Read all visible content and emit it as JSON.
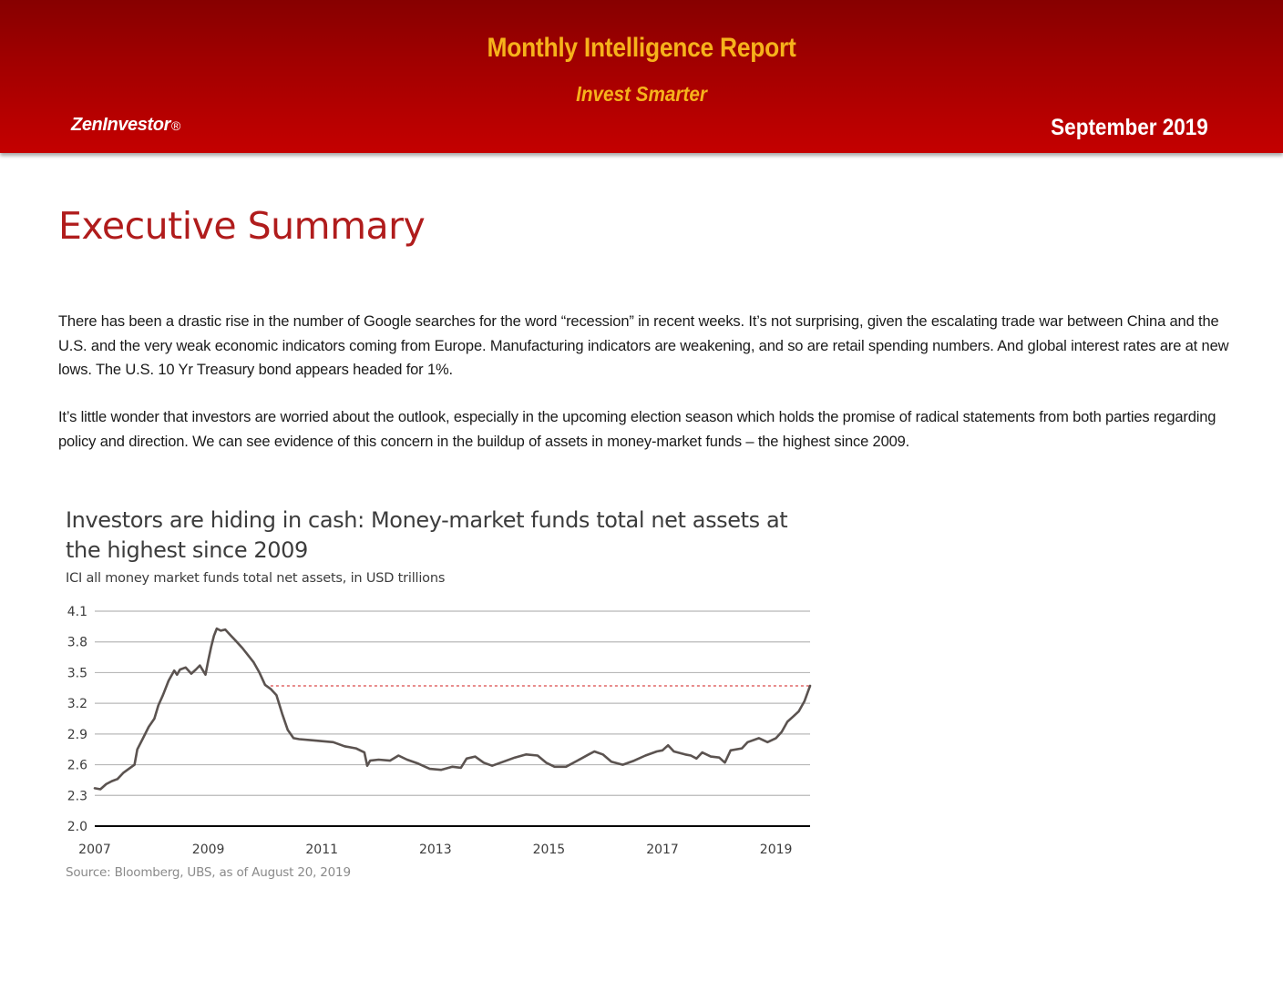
{
  "header": {
    "title": "Monthly Intelligence Report",
    "tagline": "Invest Smarter",
    "brand": "ZenInvestor",
    "brand_mark": "®",
    "date": "September 2019",
    "colors": {
      "band": "#b30000",
      "title_text": "#f6b21b",
      "brand_text": "#ffffff"
    }
  },
  "section": {
    "title": "Executive Summary",
    "title_color": "#b01c1c"
  },
  "body": {
    "paragraph_1": "There has been a drastic rise in the number of Google searches for the word “recession” in recent weeks. It’s not surprising, given the escalating trade war between China and the U.S. and the very weak economic indicators coming from Europe. Manufacturing indicators are weakening, and so are retail spending numbers. And global interest rates are at new lows. The U.S. 10 Yr Treasury bond appears headed for 1%.",
    "paragraph_2": "It’s little wonder that investors are worried about the outlook, especially in the upcoming election season which holds the promise of radical statements from both parties regarding policy and direction. We can see evidence of this concern in the buildup of assets in money-market funds – the highest since 2009."
  },
  "figure": {
    "title": "Investors are hiding in cash: Money-market funds total net assets at the highest since 2009",
    "subtitle": "ICI all money market funds total net assets, in USD trillions",
    "source": "Source: Bloomberg, UBS, as of August 20, 2019"
  },
  "chart_data": {
    "type": "line",
    "title": "Investors are hiding in cash: Money-market funds total net assets at the highest since 2009",
    "subtitle": "ICI all money market funds total net assets, in USD trillions",
    "xlabel": "",
    "ylabel": "",
    "xlim": [
      2007,
      2019.6
    ],
    "ylim": [
      2.0,
      4.1
    ],
    "x_ticks": [
      "2007",
      "2009",
      "2011",
      "2013",
      "2015",
      "2017",
      "2019"
    ],
    "y_ticks": [
      "4.1",
      "3.8",
      "3.5",
      "3.2",
      "2.9",
      "2.6",
      "2.3",
      "2.0"
    ],
    "grid": "horizontal",
    "line_color": "#5b5350",
    "series": [
      {
        "values": [
          [
            2007.0,
            2.37
          ],
          [
            2007.1,
            2.36
          ],
          [
            2007.2,
            2.41
          ],
          [
            2007.3,
            2.44
          ],
          [
            2007.4,
            2.46
          ],
          [
            2007.5,
            2.52
          ],
          [
            2007.6,
            2.56
          ],
          [
            2007.7,
            2.6
          ],
          [
            2007.75,
            2.75
          ],
          [
            2007.85,
            2.86
          ],
          [
            2007.95,
            2.97
          ],
          [
            2008.05,
            3.05
          ],
          [
            2008.12,
            3.18
          ],
          [
            2008.2,
            3.28
          ],
          [
            2008.3,
            3.42
          ],
          [
            2008.4,
            3.52
          ],
          [
            2008.45,
            3.48
          ],
          [
            2008.5,
            3.53
          ],
          [
            2008.6,
            3.55
          ],
          [
            2008.7,
            3.49
          ],
          [
            2008.78,
            3.53
          ],
          [
            2008.85,
            3.57
          ],
          [
            2008.95,
            3.48
          ],
          [
            2009.0,
            3.62
          ],
          [
            2009.05,
            3.75
          ],
          [
            2009.1,
            3.86
          ],
          [
            2009.15,
            3.93
          ],
          [
            2009.22,
            3.91
          ],
          [
            2009.3,
            3.92
          ],
          [
            2009.4,
            3.86
          ],
          [
            2009.5,
            3.8
          ],
          [
            2009.6,
            3.74
          ],
          [
            2009.7,
            3.67
          ],
          [
            2009.8,
            3.6
          ],
          [
            2009.9,
            3.5
          ],
          [
            2010.0,
            3.38
          ],
          [
            2010.1,
            3.34
          ],
          [
            2010.2,
            3.28
          ],
          [
            2010.3,
            3.1
          ],
          [
            2010.4,
            2.94
          ],
          [
            2010.5,
            2.86
          ],
          [
            2010.6,
            2.85
          ],
          [
            2010.8,
            2.84
          ],
          [
            2011.0,
            2.83
          ],
          [
            2011.2,
            2.82
          ],
          [
            2011.4,
            2.78
          ],
          [
            2011.6,
            2.76
          ],
          [
            2011.75,
            2.72
          ],
          [
            2011.8,
            2.59
          ],
          [
            2011.85,
            2.64
          ],
          [
            2012.0,
            2.65
          ],
          [
            2012.2,
            2.64
          ],
          [
            2012.35,
            2.69
          ],
          [
            2012.5,
            2.65
          ],
          [
            2012.7,
            2.61
          ],
          [
            2012.9,
            2.56
          ],
          [
            2013.1,
            2.55
          ],
          [
            2013.3,
            2.58
          ],
          [
            2013.45,
            2.57
          ],
          [
            2013.55,
            2.66
          ],
          [
            2013.7,
            2.68
          ],
          [
            2013.85,
            2.62
          ],
          [
            2014.0,
            2.59
          ],
          [
            2014.2,
            2.63
          ],
          [
            2014.4,
            2.67
          ],
          [
            2014.6,
            2.7
          ],
          [
            2014.8,
            2.69
          ],
          [
            2014.95,
            2.62
          ],
          [
            2015.1,
            2.58
          ],
          [
            2015.3,
            2.58
          ],
          [
            2015.5,
            2.64
          ],
          [
            2015.7,
            2.7
          ],
          [
            2015.8,
            2.73
          ],
          [
            2015.95,
            2.7
          ],
          [
            2016.1,
            2.63
          ],
          [
            2016.3,
            2.6
          ],
          [
            2016.5,
            2.64
          ],
          [
            2016.7,
            2.69
          ],
          [
            2016.9,
            2.73
          ],
          [
            2017.0,
            2.74
          ],
          [
            2017.1,
            2.79
          ],
          [
            2017.2,
            2.73
          ],
          [
            2017.4,
            2.7
          ],
          [
            2017.5,
            2.69
          ],
          [
            2017.6,
            2.66
          ],
          [
            2017.7,
            2.72
          ],
          [
            2017.85,
            2.68
          ],
          [
            2018.0,
            2.67
          ],
          [
            2018.1,
            2.62
          ],
          [
            2018.2,
            2.74
          ],
          [
            2018.4,
            2.76
          ],
          [
            2018.5,
            2.82
          ],
          [
            2018.7,
            2.86
          ],
          [
            2018.85,
            2.82
          ],
          [
            2019.0,
            2.86
          ],
          [
            2019.1,
            2.92
          ],
          [
            2019.2,
            3.02
          ],
          [
            2019.3,
            3.07
          ],
          [
            2019.4,
            3.12
          ],
          [
            2019.5,
            3.22
          ],
          [
            2019.6,
            3.37
          ]
        ]
      }
    ],
    "reference_line": {
      "y": 3.37,
      "x_start": 2010.0,
      "x_end": 2019.6,
      "style": "dashed",
      "color": "#d01818"
    }
  }
}
